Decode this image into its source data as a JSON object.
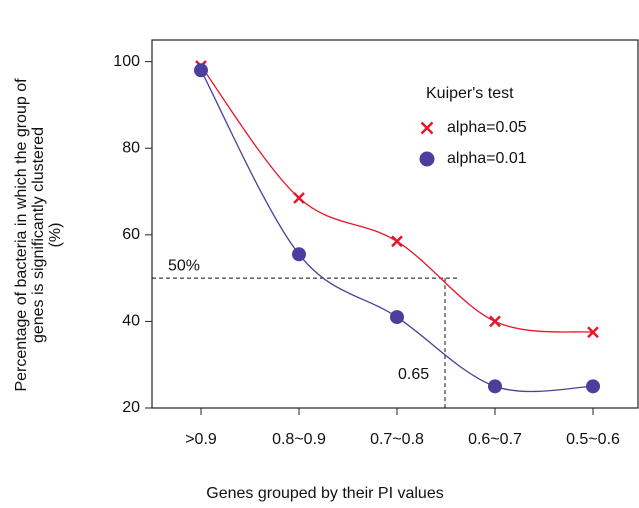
{
  "chart_data": {
    "type": "line",
    "ylabel": [
      "Percentage of bacteria in which the group of",
      "genes is significantly clustered",
      "(%)"
    ],
    "xlabel": "Genes grouped by their PI values",
    "categories": [
      ">0.9",
      "0.8~0.9",
      "0.7~0.8",
      "0.6~0.7",
      "0.5~0.6"
    ],
    "legend_title": "Kuiper's test",
    "series": [
      {
        "name": "alpha=0.05",
        "color": "#e8162a",
        "marker": "x",
        "values": [
          99,
          68.5,
          58.5,
          40,
          37.5
        ]
      },
      {
        "name": "alpha=0.01",
        "color": "#4b3f9e",
        "marker": "o",
        "values": [
          98,
          55.5,
          41,
          25,
          25
        ]
      }
    ],
    "ylim": [
      20,
      105
    ],
    "yticks": [
      20,
      40,
      60,
      80,
      100
    ],
    "annotations": [
      {
        "text": "50%",
        "value": 50
      },
      {
        "text": "0.65"
      }
    ]
  }
}
